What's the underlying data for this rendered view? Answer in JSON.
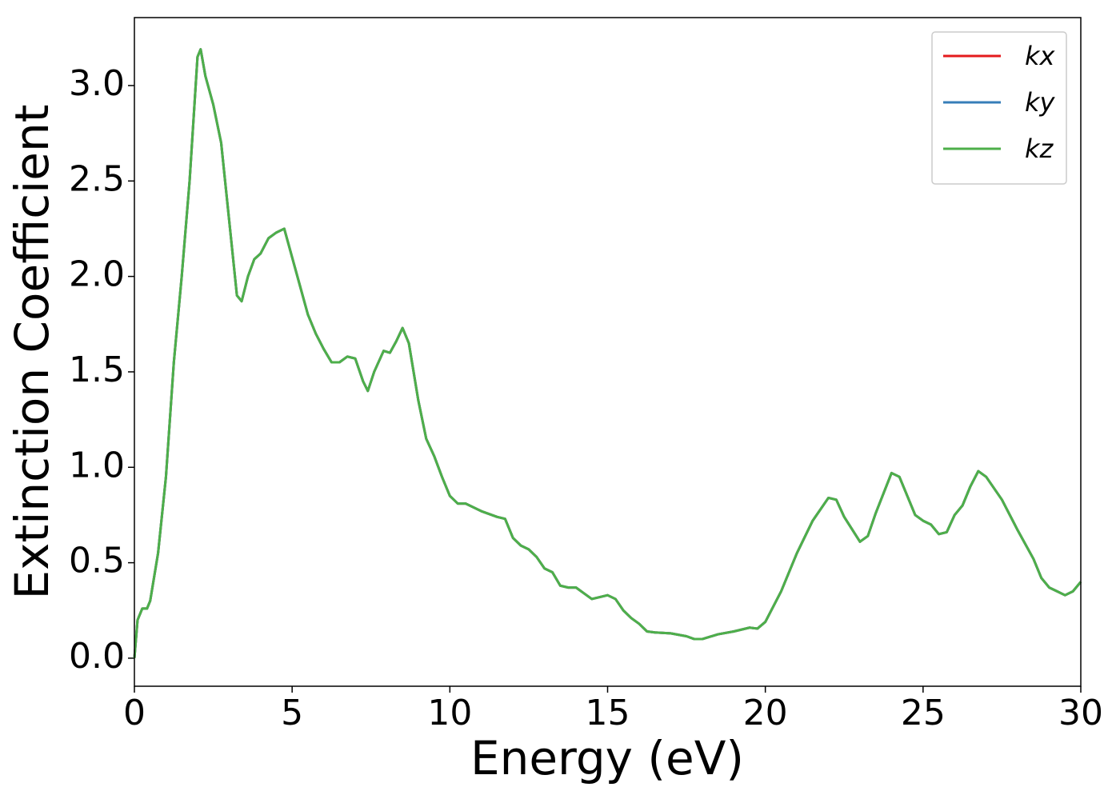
{
  "chart_data": {
    "type": "line",
    "xlabel": "Energy (eV)",
    "ylabel": "Extinction Coefficient",
    "xlim": [
      0,
      30
    ],
    "ylim": [
      -0.147,
      3.356
    ],
    "xticks": [
      0,
      5,
      10,
      15,
      20,
      25,
      30
    ],
    "yticks": [
      {
        "value": 0,
        "label": "0.0"
      },
      {
        "value": 0.5,
        "label": "0.5"
      },
      {
        "value": 1,
        "label": "1.0"
      },
      {
        "value": 1.5,
        "label": "1.5"
      },
      {
        "value": 2,
        "label": "2.0"
      },
      {
        "value": 2.5,
        "label": "2.5"
      },
      {
        "value": 3,
        "label": "3.0"
      }
    ],
    "grid": false,
    "legend": "upper right",
    "x": [
      0,
      0.1,
      0.25,
      0.4,
      0.5,
      0.75,
      1,
      1.25,
      1.5,
      1.75,
      2,
      2.1,
      2.25,
      2.5,
      2.75,
      3,
      3.25,
      3.4,
      3.6,
      3.8,
      4,
      4.25,
      4.5,
      4.75,
      5,
      5.25,
      5.5,
      5.75,
      6,
      6.25,
      6.5,
      6.75,
      7,
      7.25,
      7.4,
      7.6,
      7.9,
      8.1,
      8.3,
      8.5,
      8.7,
      9,
      9.25,
      9.5,
      9.75,
      10,
      10.25,
      10.5,
      11,
      11.5,
      11.75,
      12,
      12.25,
      12.5,
      12.75,
      13,
      13.25,
      13.5,
      13.75,
      14,
      14.25,
      14.5,
      14.75,
      15,
      15.25,
      15.5,
      15.75,
      16,
      16.25,
      16.5,
      17,
      17.5,
      17.75,
      18,
      18.5,
      19,
      19.5,
      19.75,
      20,
      20.5,
      21,
      21.5,
      22,
      22.25,
      22.5,
      23,
      23.25,
      23.5,
      24,
      24.25,
      24.5,
      24.75,
      25,
      25.25,
      25.5,
      25.75,
      26,
      26.25,
      26.5,
      26.75,
      27,
      27.5,
      28,
      28.5,
      28.75,
      29,
      29.25,
      29.5,
      29.75,
      30
    ],
    "series": [
      {
        "name": "kx",
        "color": "#e41a1c",
        "values": [
          0,
          0.2,
          0.26,
          0.26,
          0.3,
          0.55,
          0.95,
          1.55,
          2.0,
          2.5,
          3.15,
          3.19,
          3.05,
          2.9,
          2.7,
          2.3,
          1.9,
          1.87,
          2.0,
          2.09,
          2.12,
          2.2,
          2.23,
          2.25,
          2.1,
          1.95,
          1.8,
          1.7,
          1.62,
          1.55,
          1.55,
          1.58,
          1.57,
          1.45,
          1.4,
          1.5,
          1.61,
          1.6,
          1.66,
          1.73,
          1.65,
          1.35,
          1.15,
          1.06,
          0.95,
          0.85,
          0.81,
          0.81,
          0.77,
          0.74,
          0.73,
          0.63,
          0.59,
          0.57,
          0.53,
          0.47,
          0.45,
          0.38,
          0.37,
          0.37,
          0.34,
          0.31,
          0.32,
          0.33,
          0.31,
          0.25,
          0.21,
          0.18,
          0.14,
          0.135,
          0.13,
          0.115,
          0.1,
          0.1,
          0.125,
          0.14,
          0.16,
          0.155,
          0.19,
          0.35,
          0.55,
          0.72,
          0.84,
          0.83,
          0.74,
          0.61,
          0.64,
          0.76,
          0.97,
          0.95,
          0.85,
          0.75,
          0.72,
          0.7,
          0.65,
          0.66,
          0.75,
          0.8,
          0.9,
          0.98,
          0.95,
          0.83,
          0.67,
          0.52,
          0.42,
          0.37,
          0.35,
          0.33,
          0.35,
          0.4
        ]
      },
      {
        "name": "ky",
        "color": "#377eb8",
        "values": [
          0,
          0.2,
          0.26,
          0.26,
          0.3,
          0.55,
          0.95,
          1.55,
          2.0,
          2.5,
          3.15,
          3.19,
          3.05,
          2.9,
          2.7,
          2.3,
          1.9,
          1.87,
          2.0,
          2.09,
          2.12,
          2.2,
          2.23,
          2.25,
          2.1,
          1.95,
          1.8,
          1.7,
          1.62,
          1.55,
          1.55,
          1.58,
          1.57,
          1.45,
          1.4,
          1.5,
          1.61,
          1.6,
          1.66,
          1.73,
          1.65,
          1.35,
          1.15,
          1.06,
          0.95,
          0.85,
          0.81,
          0.81,
          0.77,
          0.74,
          0.73,
          0.63,
          0.59,
          0.57,
          0.53,
          0.47,
          0.45,
          0.38,
          0.37,
          0.37,
          0.34,
          0.31,
          0.32,
          0.33,
          0.31,
          0.25,
          0.21,
          0.18,
          0.14,
          0.135,
          0.13,
          0.115,
          0.1,
          0.1,
          0.125,
          0.14,
          0.16,
          0.155,
          0.19,
          0.35,
          0.55,
          0.72,
          0.84,
          0.83,
          0.74,
          0.61,
          0.64,
          0.76,
          0.97,
          0.95,
          0.85,
          0.75,
          0.72,
          0.7,
          0.65,
          0.66,
          0.75,
          0.8,
          0.9,
          0.98,
          0.95,
          0.83,
          0.67,
          0.52,
          0.42,
          0.37,
          0.35,
          0.33,
          0.35,
          0.4
        ]
      },
      {
        "name": "kz",
        "color": "#4daf4a",
        "values": [
          0,
          0.2,
          0.26,
          0.26,
          0.3,
          0.55,
          0.95,
          1.55,
          2.0,
          2.5,
          3.15,
          3.19,
          3.05,
          2.9,
          2.7,
          2.3,
          1.9,
          1.87,
          2.0,
          2.09,
          2.12,
          2.2,
          2.23,
          2.25,
          2.1,
          1.95,
          1.8,
          1.7,
          1.62,
          1.55,
          1.55,
          1.58,
          1.57,
          1.45,
          1.4,
          1.5,
          1.61,
          1.6,
          1.66,
          1.73,
          1.65,
          1.35,
          1.15,
          1.06,
          0.95,
          0.85,
          0.81,
          0.81,
          0.77,
          0.74,
          0.73,
          0.63,
          0.59,
          0.57,
          0.53,
          0.47,
          0.45,
          0.38,
          0.37,
          0.37,
          0.34,
          0.31,
          0.32,
          0.33,
          0.31,
          0.25,
          0.21,
          0.18,
          0.14,
          0.135,
          0.13,
          0.115,
          0.1,
          0.1,
          0.125,
          0.14,
          0.16,
          0.155,
          0.19,
          0.35,
          0.55,
          0.72,
          0.84,
          0.83,
          0.74,
          0.61,
          0.64,
          0.76,
          0.97,
          0.95,
          0.85,
          0.75,
          0.72,
          0.7,
          0.65,
          0.66,
          0.75,
          0.8,
          0.9,
          0.98,
          0.95,
          0.83,
          0.67,
          0.52,
          0.42,
          0.37,
          0.35,
          0.33,
          0.35,
          0.4
        ]
      }
    ]
  }
}
